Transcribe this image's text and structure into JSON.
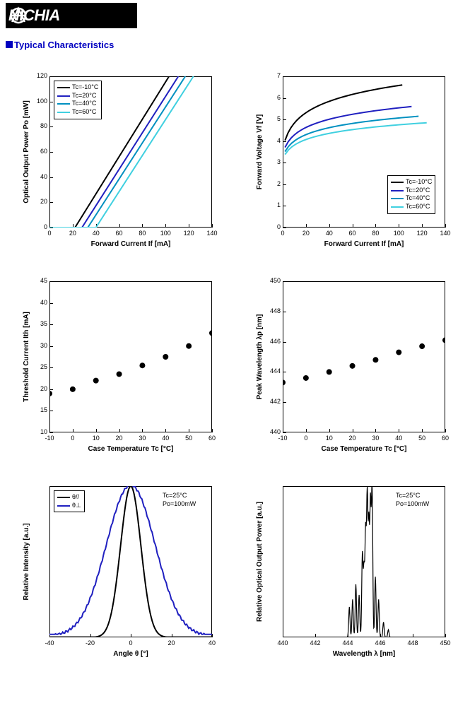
{
  "logo_text": "NICHIA",
  "section_title": "Typical Characteristics",
  "charts": {
    "A": {
      "xlabel": "Forward Current If [mA]",
      "ylabel": "Optical Output Power Po [mW]",
      "xlim": [
        0,
        140
      ],
      "xticks": [
        0,
        20,
        40,
        60,
        80,
        100,
        120,
        140
      ],
      "ylim": [
        0,
        120
      ],
      "yticks": [
        0,
        20,
        40,
        60,
        80,
        100,
        120
      ],
      "legend": [
        {
          "label": "Tc=-10°C",
          "color": "#000000"
        },
        {
          "label": "Tc=20°C",
          "color": "#2020c0"
        },
        {
          "label": "Tc=40°C",
          "color": "#0090c0"
        },
        {
          "label": "Tc=60°C",
          "color": "#40d0e0"
        }
      ],
      "series": [
        {
          "color": "#000000",
          "thresh": 22,
          "xEnd": 103
        },
        {
          "color": "#2020c0",
          "thresh": 28,
          "xEnd": 111
        },
        {
          "color": "#0090c0",
          "thresh": 33,
          "xEnd": 117
        },
        {
          "color": "#40d0e0",
          "thresh": 40,
          "xEnd": 124
        }
      ]
    },
    "B": {
      "xlabel": "Forward Current If [mA]",
      "ylabel": "Forward Voltage Vf [V]",
      "xlim": [
        0,
        140
      ],
      "xticks": [
        0,
        20,
        40,
        60,
        80,
        100,
        120,
        140
      ],
      "ylim": [
        0,
        7
      ],
      "yticks": [
        0,
        1,
        2,
        3,
        4,
        5,
        6,
        7
      ],
      "legend": [
        {
          "label": "Tc=-10°C",
          "color": "#000000"
        },
        {
          "label": "Tc=20°C",
          "color": "#2020c0"
        },
        {
          "label": "Tc=40°C",
          "color": "#0090c0"
        },
        {
          "label": "Tc=60°C",
          "color": "#40d0e0"
        }
      ],
      "series": [
        {
          "color": "#000000",
          "y0": 3.6,
          "yEnd": 6.6,
          "xEnd": 103
        },
        {
          "color": "#2020c0",
          "y0": 3.4,
          "yEnd": 5.6,
          "xEnd": 111
        },
        {
          "color": "#0090c0",
          "y0": 3.25,
          "yEnd": 5.15,
          "xEnd": 117
        },
        {
          "color": "#40d0e0",
          "y0": 3.15,
          "yEnd": 4.85,
          "xEnd": 124
        }
      ]
    },
    "C": {
      "xlabel": "Case Temperature Tc [°C]",
      "ylabel": "Threshold Current Ith [mA]",
      "xlim": [
        -10,
        60
      ],
      "xticks": [
        -10,
        0,
        10,
        20,
        30,
        40,
        50,
        60
      ],
      "ylim": [
        10,
        45
      ],
      "yticks": [
        10,
        15,
        20,
        25,
        30,
        35,
        40,
        45
      ],
      "points": [
        [
          -10,
          19
        ],
        [
          0,
          20
        ],
        [
          10,
          22
        ],
        [
          20,
          23.5
        ],
        [
          30,
          25.5
        ],
        [
          40,
          27.5
        ],
        [
          50,
          30
        ],
        [
          60,
          33
        ]
      ],
      "marker_color": "#000000"
    },
    "D": {
      "xlabel": "Case Temperature Tc [°C]",
      "ylabel": "Peak Wavelength λp [nm]",
      "xlim": [
        -10,
        60
      ],
      "xticks": [
        -10,
        0,
        10,
        20,
        30,
        40,
        50,
        60
      ],
      "ylim": [
        440,
        450
      ],
      "yticks": [
        440,
        442,
        444,
        446,
        448,
        450
      ],
      "points": [
        [
          -10,
          443.3
        ],
        [
          0,
          443.6
        ],
        [
          10,
          444.0
        ],
        [
          20,
          444.4
        ],
        [
          30,
          444.8
        ],
        [
          40,
          445.3
        ],
        [
          50,
          445.7
        ],
        [
          60,
          446.1
        ]
      ],
      "marker_color": "#000000"
    },
    "E": {
      "xlabel": "Angle θ [°]",
      "ylabel": "Relative Intensity [a.u.]",
      "xlim": [
        -40,
        40
      ],
      "xticks": [
        -40,
        -20,
        0,
        20,
        40
      ],
      "legend": [
        {
          "label": "θ//",
          "color": "#000000"
        },
        {
          "label": "θ⊥",
          "color": "#2020c0"
        }
      ],
      "annot": [
        "Tc=25°C",
        "Po=100mW"
      ],
      "para_sigma": 5,
      "perp_sigma": 12,
      "para_color": "#000000",
      "perp_color": "#2020c0"
    },
    "F": {
      "xlabel": "Wavelength λ [nm]",
      "ylabel": "Relative Optical Output Power [a.u.]",
      "xlim": [
        440,
        450
      ],
      "xticks": [
        440,
        442,
        444,
        446,
        448,
        450
      ],
      "annot": [
        "Tc=25°C",
        "Po=100mW"
      ],
      "peaks": [
        [
          444.1,
          0.2
        ],
        [
          444.3,
          0.25
        ],
        [
          444.5,
          0.35
        ],
        [
          444.7,
          0.28
        ],
        [
          444.9,
          0.55
        ],
        [
          445.0,
          0.45
        ],
        [
          445.1,
          0.7
        ],
        [
          445.2,
          0.95
        ],
        [
          445.3,
          0.75
        ],
        [
          445.4,
          0.88
        ],
        [
          445.5,
          1.0
        ],
        [
          445.7,
          0.4
        ],
        [
          445.9,
          0.25
        ],
        [
          446.2,
          0.1
        ],
        [
          446.5,
          0.05
        ]
      ],
      "line_color": "#000000"
    }
  }
}
